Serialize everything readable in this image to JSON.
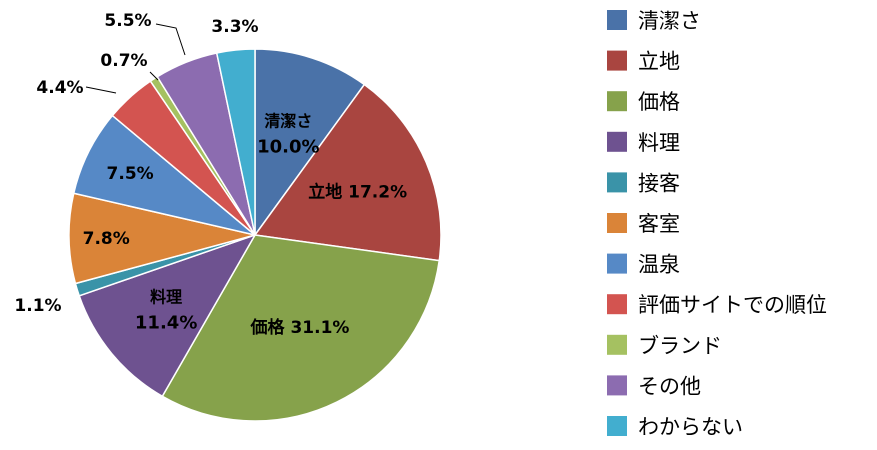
{
  "chart_data": {
    "type": "pie",
    "title": "",
    "legend_position": "right",
    "start_angle_deg": 0,
    "direction": "clockwise",
    "slices": [
      {
        "category": "清潔さ",
        "value": 10.0,
        "label": "10.0%",
        "color": "#4A72A8"
      },
      {
        "category": "立地",
        "value": 17.2,
        "label": "17.2%",
        "color": "#A94540"
      },
      {
        "category": "価格",
        "value": 31.1,
        "label": "31.1%",
        "color": "#86A24B"
      },
      {
        "category": "料理",
        "value": 11.4,
        "label": "11.4%",
        "color": "#6E5290"
      },
      {
        "category": "接客",
        "value": 1.1,
        "label": "1.1%",
        "color": "#3A93A8"
      },
      {
        "category": "客室",
        "value": 7.8,
        "label": "7.8%",
        "color": "#DA8438"
      },
      {
        "category": "温泉",
        "value": 7.5,
        "label": "7.5%",
        "color": "#5689C6"
      },
      {
        "category": "評価サイトでの順位",
        "value": 4.4,
        "label": "4.4%",
        "color": "#D35450"
      },
      {
        "category": "ブランド",
        "value": 0.7,
        "label": "0.7%",
        "color": "#A5C161"
      },
      {
        "category": "その他",
        "value": 5.5,
        "label": "5.5%",
        "color": "#8C6CB0"
      },
      {
        "category": "わからない",
        "value": 3.3,
        "label": "3.3%",
        "color": "#42AECF"
      }
    ]
  }
}
